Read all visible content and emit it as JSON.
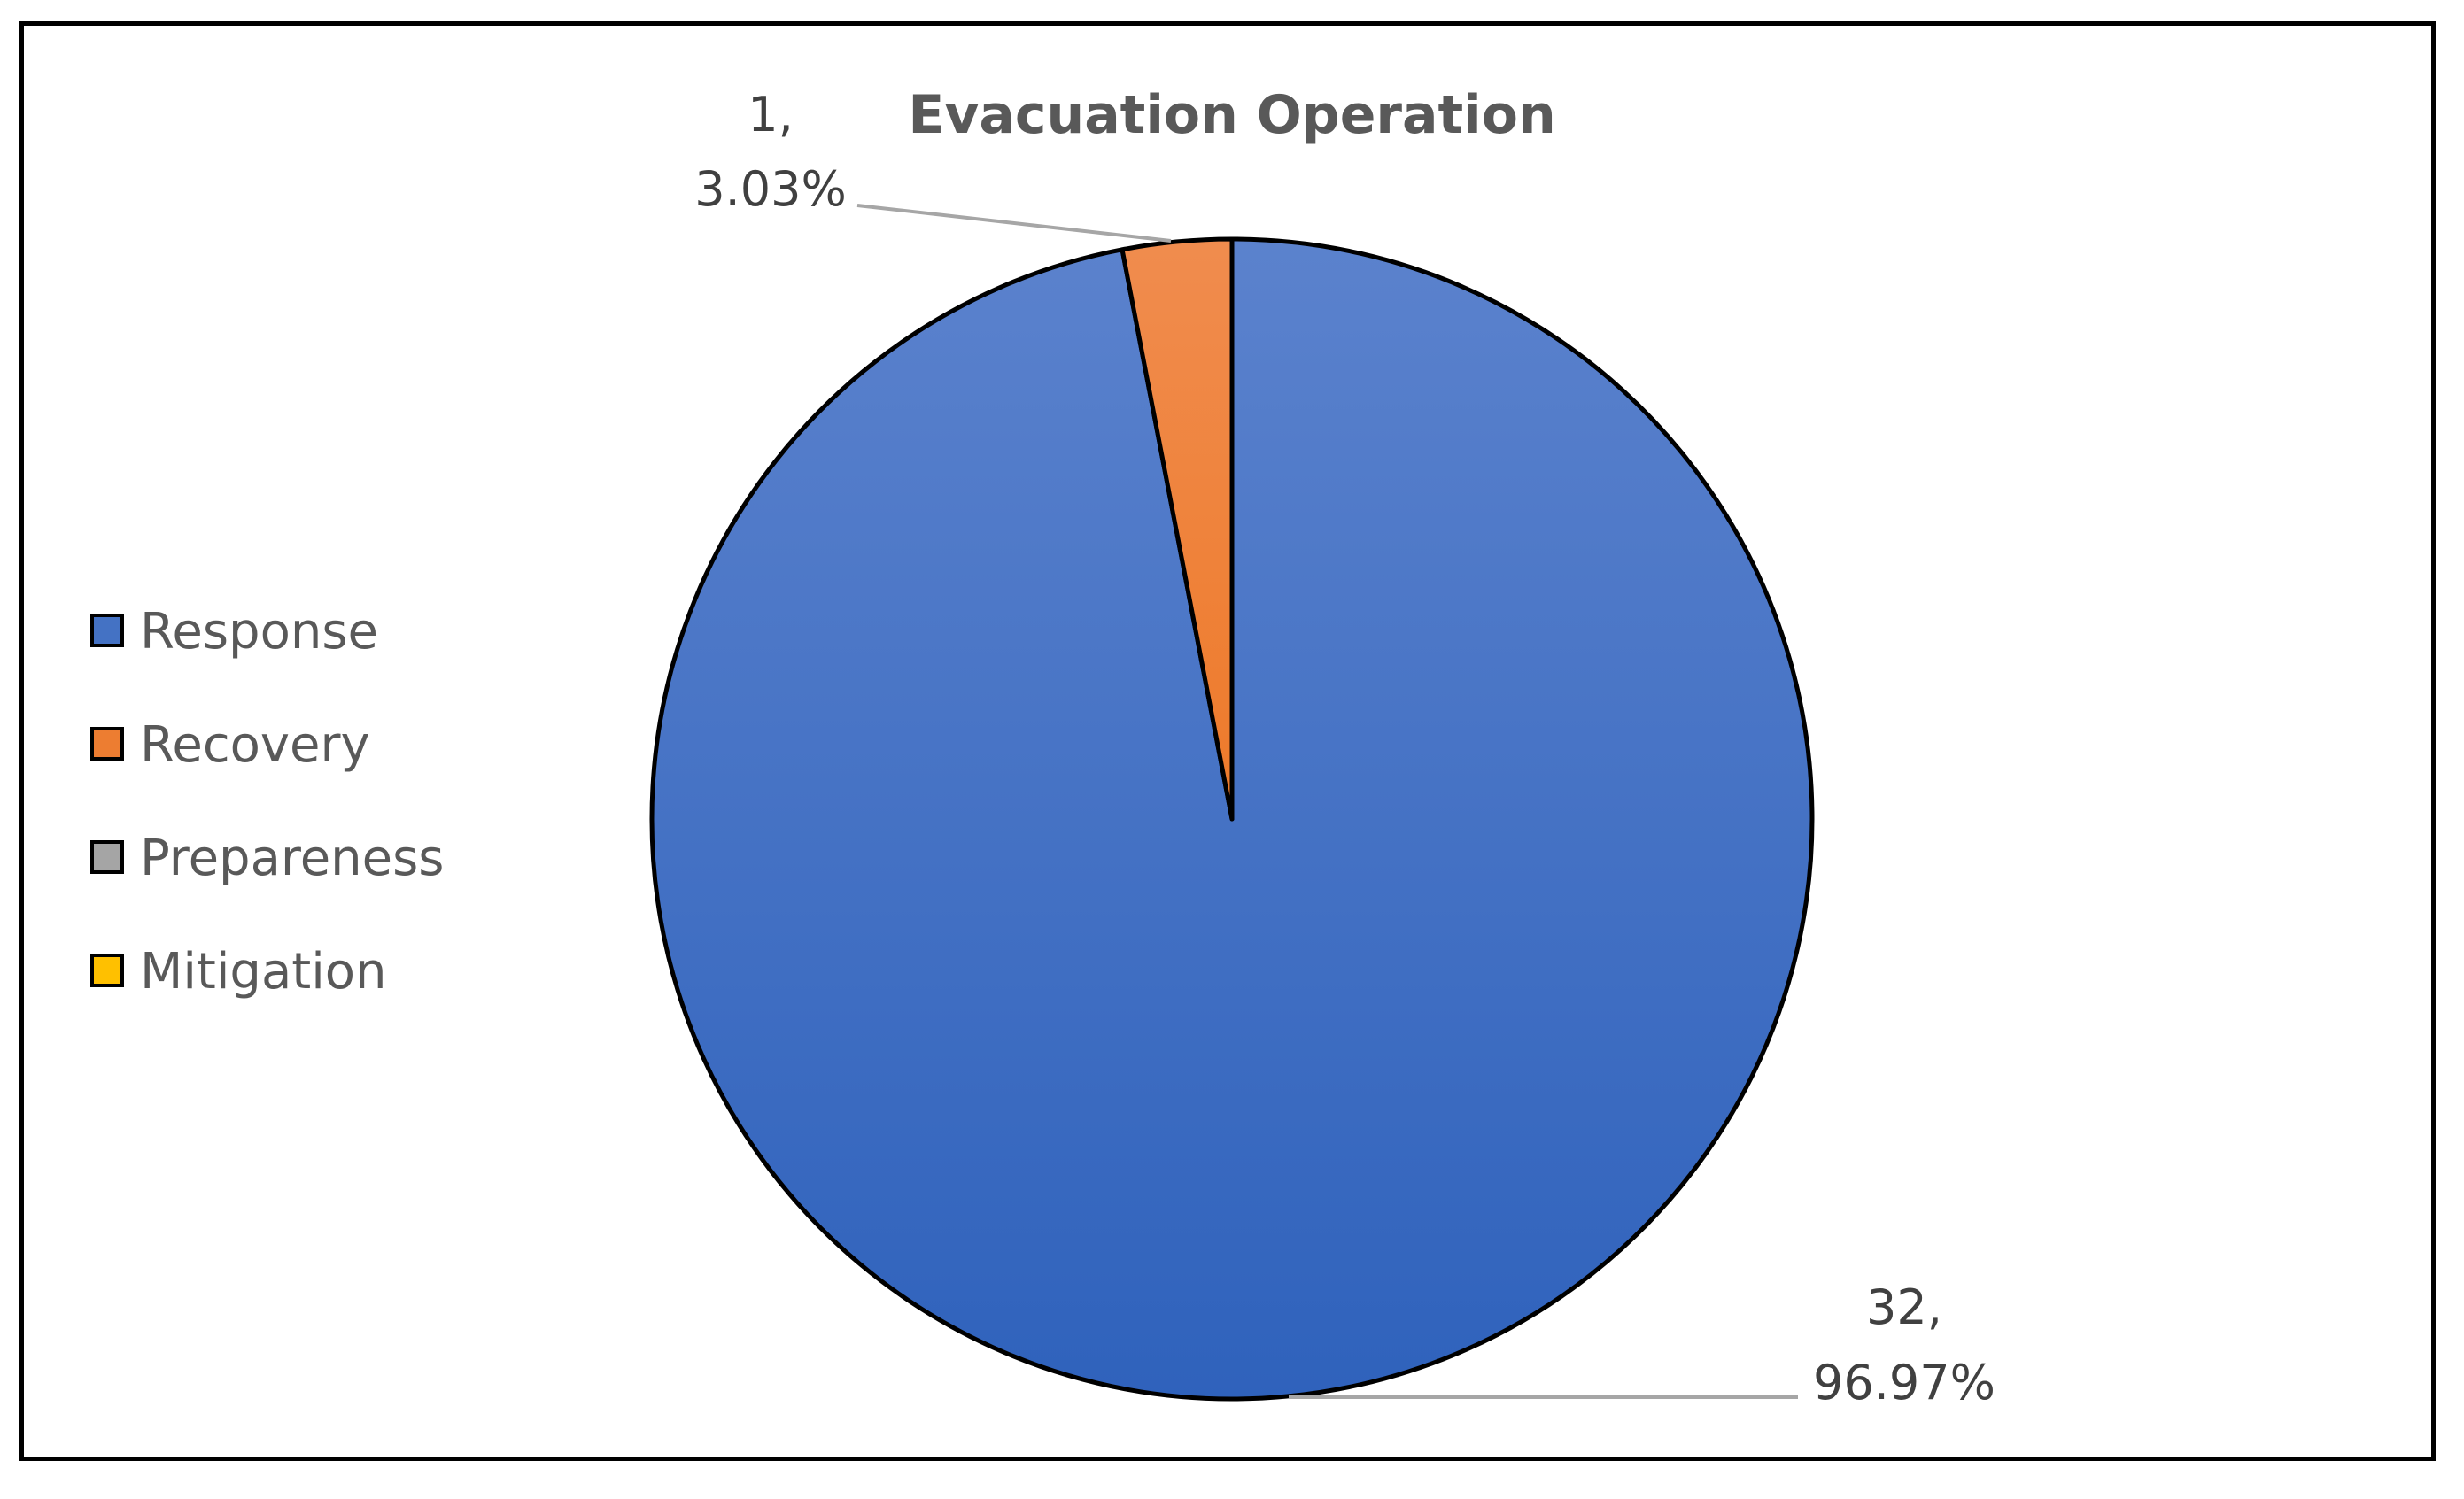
{
  "chart_data": {
    "type": "pie",
    "title": "Evacuation Operation",
    "categories": [
      "Response",
      "Recovery",
      "Prepareness",
      "Mitigation"
    ],
    "values": [
      32,
      1,
      0,
      0
    ],
    "percentages": [
      "96.97%",
      "3.03%",
      "0%",
      "0%"
    ],
    "data_labels": [
      {
        "category": "Response",
        "value_text": "32,",
        "percent_text": "96.97%"
      },
      {
        "category": "Recovery",
        "value_text": "1,",
        "percent_text": "3.03%"
      }
    ],
    "colors": [
      "#4472C4",
      "#ED7D31",
      "#A5A5A5",
      "#FFC000"
    ],
    "legend_position": "left"
  }
}
